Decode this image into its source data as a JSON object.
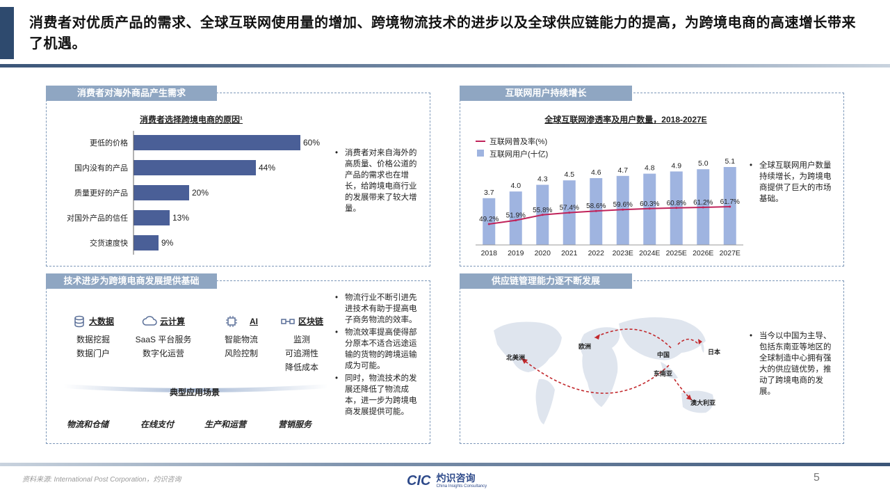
{
  "header": {
    "title": "消费者对优质产品的需求、全球互联网使用量的增加、跨境物流技术的进步以及全球供应链能力的提高，为跨境电商的高速增长带来了机遇。"
  },
  "panels": {
    "consumer": {
      "heading": "消费者对海外商品产生需求",
      "bullets": [
        "消费者对来自海外的高质量、价格公道的产品的需求也在增长，给跨境电商行业的发展带来了较大增量。"
      ]
    },
    "internet": {
      "heading": "互联网用户持续增长",
      "bullets": [
        "全球互联网用户数量持续增长，为跨境电商提供了巨大的市场基础。"
      ]
    },
    "tech": {
      "heading": "技术进步为跨境电商发展提供基础",
      "columns": [
        {
          "title": "大数据",
          "icon": "database-icon",
          "items": [
            "数据挖掘",
            "数据门户"
          ]
        },
        {
          "title": "云计算",
          "icon": "cloud-icon",
          "items": [
            "SaaS 平台服务",
            "数字化运营"
          ]
        },
        {
          "title": "AI",
          "icon": "chip-icon",
          "items": [
            "智能物流",
            "风险控制"
          ]
        },
        {
          "title": "区块链",
          "icon": "blockchain-icon",
          "items": [
            "监测",
            "可追溯性",
            "降低成本"
          ]
        }
      ],
      "scenarios_label": "典型应用场景",
      "scenarios": [
        "物流和仓储",
        "在线支付",
        "生产和运营",
        "营销服务"
      ],
      "bullets": [
        "物流行业不断引进先进技术有助于提高电子商务物流的效率。",
        "物流效率提高使得部分原本不适合远途运输的货物的跨境运输成为可能。",
        "同时，物流技术的发展还降低了物流成本，进一步为跨境电商发展提供可能。"
      ]
    },
    "supply": {
      "heading": "供应链管理能力逐不断发展",
      "map_labels": [
        "北美洲",
        "欧洲",
        "中国",
        "日本",
        "东南亚",
        "澳大利亚"
      ],
      "bullets": [
        "当今以中国为主导、包括东南亚等地区的全球制造中心拥有强大的供应链优势，推动了跨境电商的发展。"
      ]
    }
  },
  "chart_data": [
    {
      "type": "bar",
      "title": "消费者选择跨境电商的原因¹",
      "categories": [
        "更低的价格",
        "国内没有的产品",
        "质量更好的产品",
        "对国外产品的信任",
        "交货速度快"
      ],
      "values": [
        60,
        44,
        20,
        13,
        9
      ],
      "value_labels": [
        "60%",
        "44%",
        "20%",
        "13%",
        "9%"
      ],
      "orientation": "horizontal",
      "color": "#4a5f97"
    },
    {
      "type": "bar",
      "title": "全球互联网渗透率及用户数量，2018-2027E",
      "categories": [
        "2018",
        "2019",
        "2020",
        "2021",
        "2022",
        "2023E",
        "2024E",
        "2025E",
        "2026E",
        "2027E"
      ],
      "series": [
        {
          "name": "互联网用户(十亿)",
          "type": "bar",
          "values": [
            3.7,
            4.0,
            4.3,
            4.5,
            4.6,
            4.7,
            4.8,
            4.9,
            5.0,
            5.1
          ],
          "labels": [
            "3.7",
            "4.0",
            "4.3",
            "4.5",
            "4.6",
            "4.7",
            "4.8",
            "4.9",
            "5.0",
            "5.1"
          ],
          "color": "#9fb4e0"
        },
        {
          "name": "互联网普及率(%)",
          "type": "line",
          "values": [
            49.2,
            51.9,
            55.8,
            57.4,
            58.6,
            59.6,
            60.3,
            60.8,
            61.2,
            61.7
          ],
          "labels": [
            "49.2%",
            "51.9%",
            "55.8%",
            "57.4%",
            "58.6%",
            "59.6%",
            "60.3%",
            "60.8%",
            "61.2%",
            "61.7%"
          ],
          "color": "#c0235a"
        }
      ],
      "legend": "top-left"
    }
  ],
  "footer": {
    "source": "资料来源: International Post Corporation，灼识咨询",
    "logo_text": "CIC",
    "logo_cn": "灼识咨询",
    "logo_en": "China Insights Consultancy",
    "page": "5"
  }
}
